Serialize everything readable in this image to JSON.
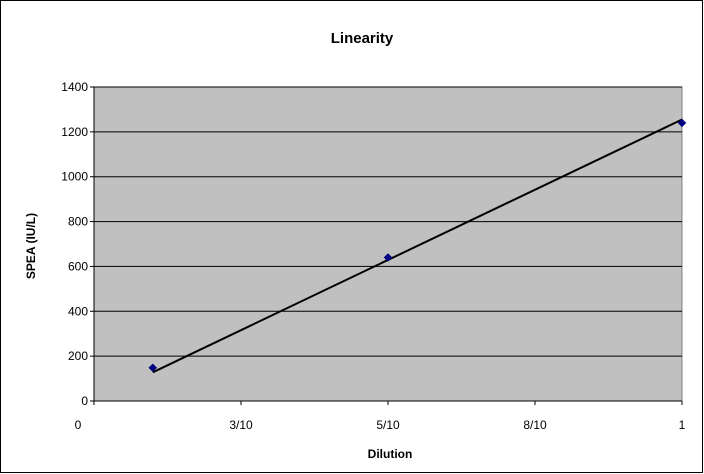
{
  "chart_data": {
    "type": "scatter",
    "title": "Linearity",
    "xlabel": "Dilution",
    "ylabel": "SPEA (IU/L)",
    "xlim": [
      0,
      1
    ],
    "ylim": [
      0,
      1400
    ],
    "x_ticks": [
      {
        "value": 0,
        "label": "0"
      },
      {
        "value": 0.25,
        "label": "3/10"
      },
      {
        "value": 0.5,
        "label": "5/10"
      },
      {
        "value": 0.75,
        "label": "8/10"
      },
      {
        "value": 1,
        "label": "1"
      }
    ],
    "y_ticks": [
      0,
      200,
      400,
      600,
      800,
      1000,
      1200,
      1400
    ],
    "series": [
      {
        "points": [
          {
            "x": 0.1,
            "y": 148
          },
          {
            "x": 0.5,
            "y": 640
          },
          {
            "x": 1.0,
            "y": 1240
          }
        ],
        "marker": "diamond",
        "color": "#000080"
      }
    ],
    "trendline": {
      "type": "linear",
      "from": {
        "x": 0.1,
        "y": 128
      },
      "to": {
        "x": 1.0,
        "y": 1255
      },
      "color": "#000000"
    },
    "plot_background": "#c0c0c0",
    "grid": {
      "horizontal": true,
      "vertical": false,
      "color": "#000000"
    },
    "legend": "none"
  }
}
